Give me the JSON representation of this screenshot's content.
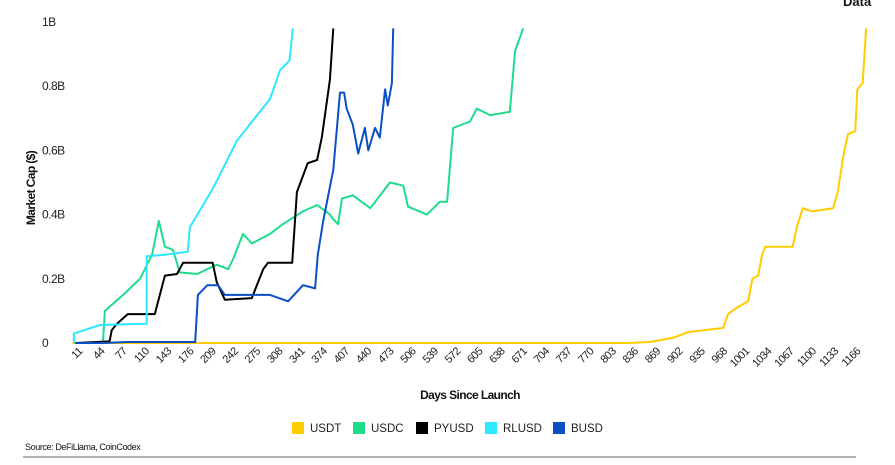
{
  "header": {
    "corner_text": "Data"
  },
  "source": "Source: DeFiLlama, CoinCodex",
  "chart_data": {
    "type": "line",
    "title": "",
    "xlabel": "Days Since Launch",
    "ylabel": "Market Cap ($)",
    "xlim": [
      0,
      1180
    ],
    "ylim": [
      0,
      1
    ],
    "x_ticks": [
      11,
      44,
      77,
      110,
      143,
      176,
      209,
      242,
      275,
      308,
      341,
      374,
      407,
      440,
      473,
      506,
      539,
      572,
      605,
      638,
      671,
      704,
      737,
      770,
      803,
      836,
      869,
      902,
      935,
      968,
      1001,
      1034,
      1067,
      1100,
      1133,
      1166
    ],
    "y_ticks": [
      {
        "value": 0,
        "label": "0"
      },
      {
        "value": 0.2,
        "label": "0.2B"
      },
      {
        "value": 0.4,
        "label": "0.4B"
      },
      {
        "value": 0.6,
        "label": "0.6B"
      },
      {
        "value": 0.8,
        "label": "0.8B"
      },
      {
        "value": 1,
        "label": "1B"
      }
    ],
    "y_unit": "billions USD",
    "grid": false,
    "legend_position": "bottom",
    "series": [
      {
        "name": "USDT",
        "color": "#FFCC00",
        "points": [
          [
            0,
            0
          ],
          [
            823,
            0
          ],
          [
            857,
            0.003
          ],
          [
            891,
            0.016
          ],
          [
            914,
            0.034
          ],
          [
            966,
            0.047
          ],
          [
            973,
            0.09
          ],
          [
            986,
            0.11
          ],
          [
            1003,
            0.13
          ],
          [
            1009,
            0.2
          ],
          [
            1018,
            0.21
          ],
          [
            1023,
            0.27
          ],
          [
            1028,
            0.3
          ],
          [
            1069,
            0.3
          ],
          [
            1075,
            0.36
          ],
          [
            1084,
            0.42
          ],
          [
            1098,
            0.41
          ],
          [
            1129,
            0.42
          ],
          [
            1136,
            0.47
          ],
          [
            1144,
            0.58
          ],
          [
            1151,
            0.65
          ],
          [
            1162,
            0.66
          ],
          [
            1165,
            0.79
          ],
          [
            1173,
            0.81
          ],
          [
            1178,
            0.98
          ]
        ]
      },
      {
        "name": "USDC",
        "color": "#1EDC8C",
        "points": [
          [
            45,
            0
          ],
          [
            48,
            0.1
          ],
          [
            75,
            0.15
          ],
          [
            100,
            0.2
          ],
          [
            118,
            0.275
          ],
          [
            128,
            0.38
          ],
          [
            137,
            0.3
          ],
          [
            149,
            0.29
          ],
          [
            159,
            0.22
          ],
          [
            185,
            0.215
          ],
          [
            214,
            0.244
          ],
          [
            231,
            0.23
          ],
          [
            238,
            0.26
          ],
          [
            253,
            0.34
          ],
          [
            266,
            0.31
          ],
          [
            293,
            0.34
          ],
          [
            312,
            0.37
          ],
          [
            342,
            0.41
          ],
          [
            363,
            0.43
          ],
          [
            382,
            0.4
          ],
          [
            385,
            0.39
          ],
          [
            394,
            0.37
          ],
          [
            400,
            0.45
          ],
          [
            416,
            0.46
          ],
          [
            442,
            0.42
          ],
          [
            471,
            0.5
          ],
          [
            491,
            0.49
          ],
          [
            498,
            0.425
          ],
          [
            526,
            0.4
          ],
          [
            545,
            0.44
          ],
          [
            556,
            0.44
          ],
          [
            565,
            0.67
          ],
          [
            590,
            0.69
          ],
          [
            600,
            0.73
          ],
          [
            620,
            0.71
          ],
          [
            649,
            0.72
          ],
          [
            657,
            0.91
          ],
          [
            669,
            0.98
          ]
        ]
      },
      {
        "name": "PYUSD",
        "color": "#000000",
        "points": [
          [
            4,
            0
          ],
          [
            55,
            0.005
          ],
          [
            58,
            0.04
          ],
          [
            66,
            0.06
          ],
          [
            82,
            0.09
          ],
          [
            122,
            0.09
          ],
          [
            137,
            0.21
          ],
          [
            155,
            0.215
          ],
          [
            164,
            0.25
          ],
          [
            208,
            0.25
          ],
          [
            214,
            0.19
          ],
          [
            226,
            0.135
          ],
          [
            266,
            0.14
          ],
          [
            283,
            0.23
          ],
          [
            290,
            0.25
          ],
          [
            326,
            0.25
          ],
          [
            333,
            0.47
          ],
          [
            349,
            0.56
          ],
          [
            363,
            0.57
          ],
          [
            370,
            0.64
          ],
          [
            382,
            0.82
          ],
          [
            387,
            0.98
          ]
        ]
      },
      {
        "name": "RLUSD",
        "color": "#2EE8FF",
        "points": [
          [
            2,
            0
          ],
          [
            2,
            0.03
          ],
          [
            41,
            0.056
          ],
          [
            110,
            0.06
          ],
          [
            110,
            0.27
          ],
          [
            137,
            0.275
          ],
          [
            171,
            0.284
          ],
          [
            174,
            0.36
          ],
          [
            208,
            0.48
          ],
          [
            244,
            0.63
          ],
          [
            274,
            0.71
          ],
          [
            293,
            0.76
          ],
          [
            308,
            0.85
          ],
          [
            322,
            0.88
          ],
          [
            327,
            0.98
          ]
        ]
      },
      {
        "name": "BUSD",
        "color": "#0A4FC4",
        "points": [
          [
            4,
            0
          ],
          [
            45,
            0
          ],
          [
            81,
            0.003
          ],
          [
            182,
            0.003
          ],
          [
            186,
            0.15
          ],
          [
            200,
            0.18
          ],
          [
            216,
            0.18
          ],
          [
            226,
            0.15
          ],
          [
            256,
            0.15
          ],
          [
            293,
            0.15
          ],
          [
            320,
            0.13
          ],
          [
            342,
            0.18
          ],
          [
            360,
            0.17
          ],
          [
            364,
            0.275
          ],
          [
            372,
            0.38
          ],
          [
            387,
            0.54
          ],
          [
            397,
            0.78
          ],
          [
            403,
            0.78
          ],
          [
            407,
            0.73
          ],
          [
            416,
            0.68
          ],
          [
            424,
            0.59
          ],
          [
            434,
            0.67
          ],
          [
            439,
            0.6
          ],
          [
            449,
            0.67
          ],
          [
            456,
            0.64
          ],
          [
            464,
            0.79
          ],
          [
            468,
            0.74
          ],
          [
            474,
            0.81
          ],
          [
            476,
            0.98
          ]
        ]
      }
    ]
  }
}
